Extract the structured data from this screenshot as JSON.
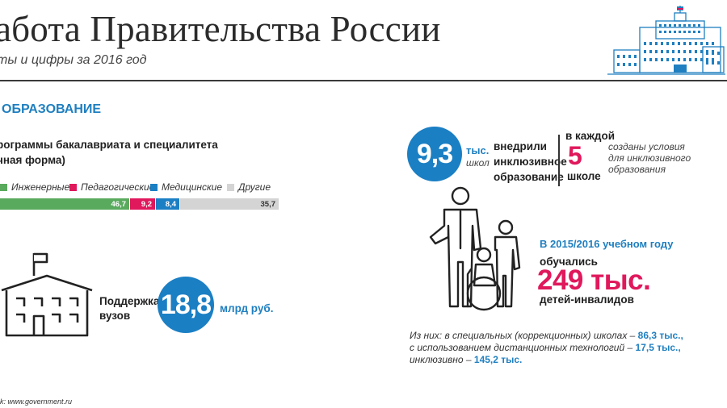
{
  "header": {
    "title": "абота Правительства России",
    "subtitle": "ты и цифры за 2016 год"
  },
  "section": {
    "title": "ОБРАЗОВАНИЕ"
  },
  "programs": {
    "title_line1": "рограммы бакалавриата и специалитета",
    "title_line2": "чная форма)",
    "legend": [
      {
        "label": "Инженерные",
        "color": "#5aaa5e"
      },
      {
        "label": "Педагогические",
        "color": "#e0185c"
      },
      {
        "label": "Медицинские",
        "color": "#1b7fc4"
      },
      {
        "label": "Другие",
        "color": "#d4d4d4"
      }
    ],
    "chart_data": {
      "type": "bar",
      "categories": [
        "Инженерные",
        "Педагогические",
        "Медицинские",
        "Другие"
      ],
      "values": [
        46.7,
        9.2,
        8.4,
        35.7
      ],
      "value_labels": [
        "46,7",
        "9,2",
        "8,4",
        "35,7"
      ]
    }
  },
  "universities": {
    "label_line1": "Поддержка",
    "label_line2": "вузов",
    "value": "18,8",
    "unit": "млрд руб."
  },
  "inclusive": {
    "value": "9,3",
    "unit_top": "тыс.",
    "unit_bottom": "школ",
    "desc_line1": "внедрили",
    "desc_line2": "инклюзивное",
    "desc_line3": "образование",
    "every_top": "в каждой",
    "every_value": "5",
    "every_bottom": "школе",
    "cond_line1": "созданы условия",
    "cond_line2": "для инклюзивного",
    "cond_line3": "образования"
  },
  "disabled_children": {
    "year_text": "В 2015/2016 учебном году",
    "studied": "обучались",
    "value": "249 тыс.",
    "who": "детей-инвалидов",
    "breakdown": [
      {
        "text": "Из них: в специальных (коррекционных) школах –",
        "value": "86,3 тыс.,"
      },
      {
        "text": "с использованием дистанционных технологий –",
        "value": "17,5 тыс.,"
      },
      {
        "text": "инклюзивно –",
        "value": "145,2 тыс."
      }
    ]
  },
  "footer": {
    "source": "k: www.government.ru"
  },
  "colors": {
    "accent_blue": "#1f7fc0",
    "accent_red": "#e0185c",
    "circle_blue": "#1b7fc4"
  }
}
